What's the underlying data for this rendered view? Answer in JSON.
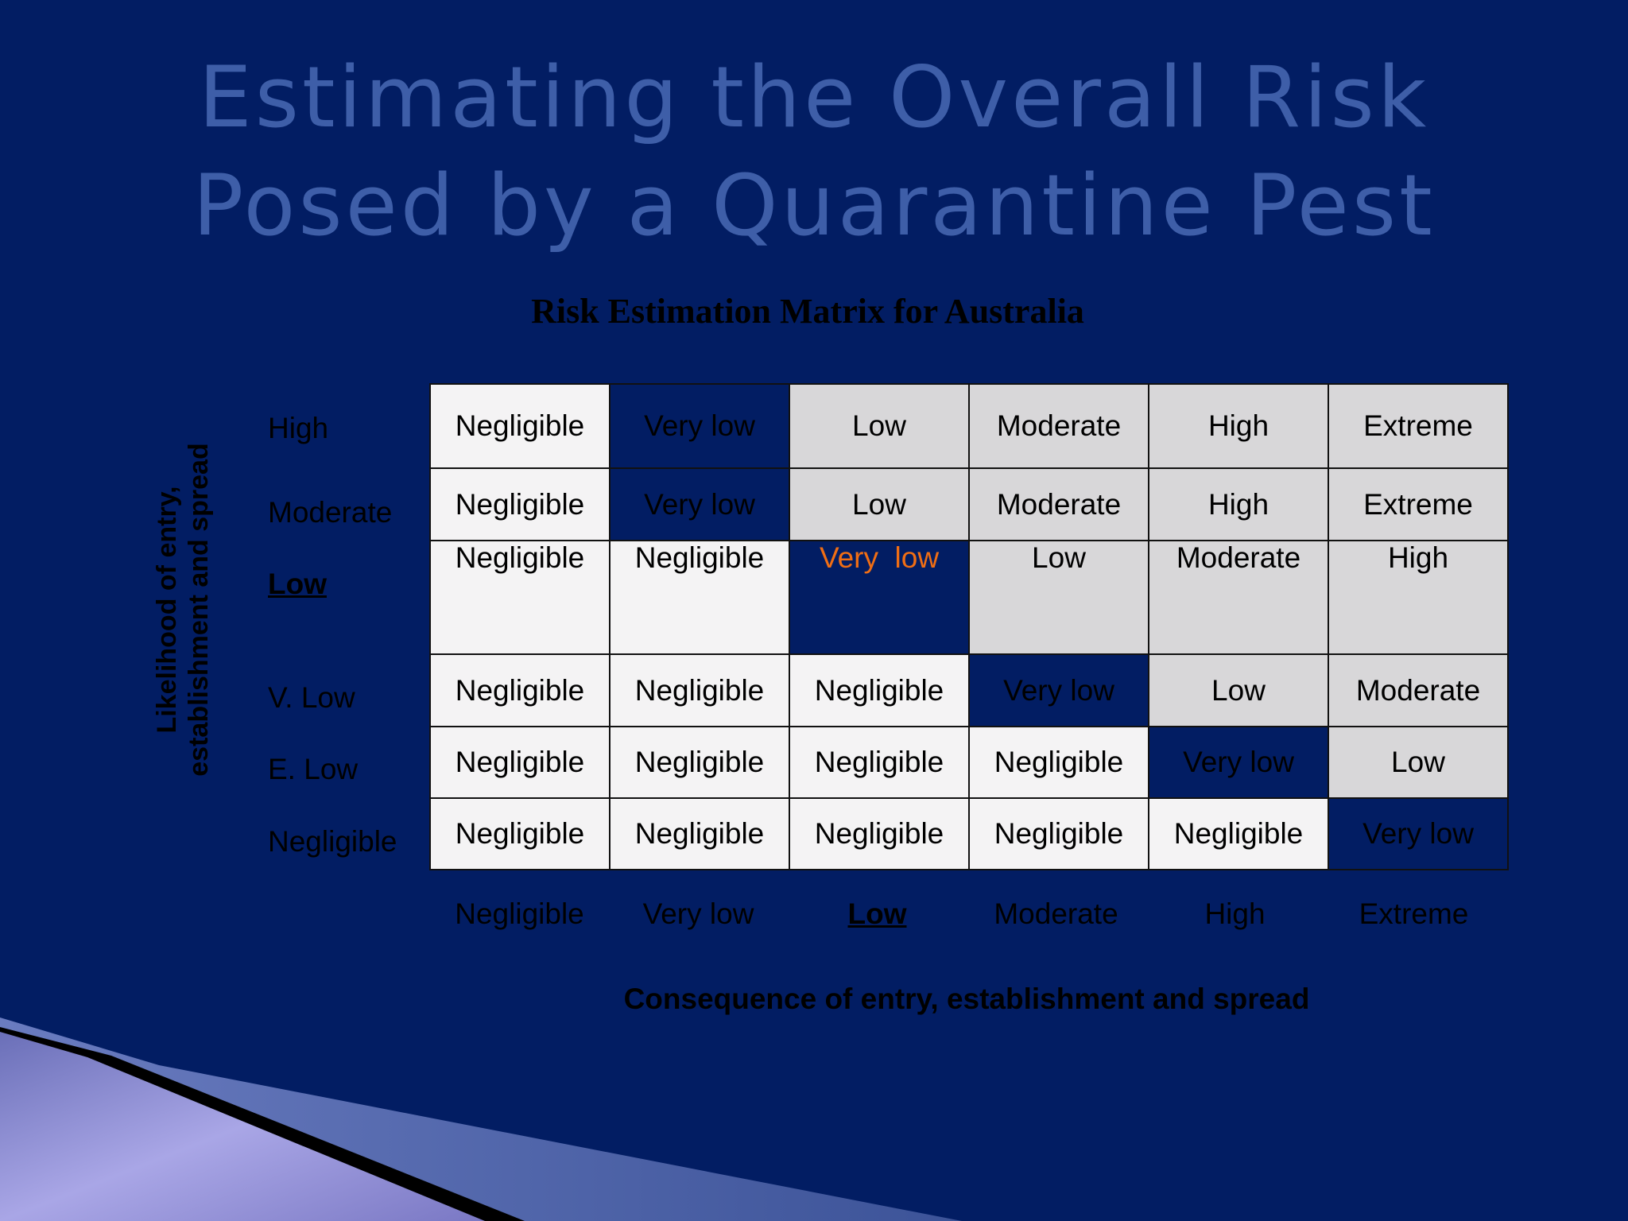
{
  "slide": {
    "title_line1": "Estimating the Overall Risk",
    "title_line2": "Posed by a Quarantine Pest",
    "matrix_title": "Risk Estimation Matrix for Australia",
    "y_axis_line1": "Likelihood of entry,",
    "y_axis_line2": "establishment and spread",
    "x_axis": "Consequence of entry, establishment and spread"
  },
  "matrix": {
    "row_labels": [
      "High",
      "Moderate",
      "Low",
      "V. Low",
      "E. Low",
      "Negligible"
    ],
    "col_labels": [
      "Negligible",
      "Very low",
      "Low",
      "Moderate",
      "High",
      "Extreme"
    ],
    "rows": [
      [
        "Negligible",
        "Very low",
        "Low",
        "Moderate",
        "High",
        "Extreme"
      ],
      [
        "Negligible",
        "Very low",
        "Low",
        "Moderate",
        "High",
        "Extreme"
      ],
      [
        "Negligible",
        "Negligible",
        "Very  low",
        "Low",
        "Moderate",
        "High"
      ],
      [
        "Negligible",
        "Negligible",
        "Negligible",
        "Very low",
        "Low",
        "Moderate"
      ],
      [
        "Negligible",
        "Negligible",
        "Negligible",
        "Negligible",
        "Very low",
        "Low"
      ],
      [
        "Negligible",
        "Negligible",
        "Negligible",
        "Negligible",
        "Negligible",
        "Very low"
      ]
    ]
  },
  "colors": {
    "background": "#021d63",
    "negligible_cell": "#f4f3f4",
    "risk_cell": "#d8d7d9",
    "very_low_cell": "#021d63",
    "highlight_text": "#f06e14"
  }
}
